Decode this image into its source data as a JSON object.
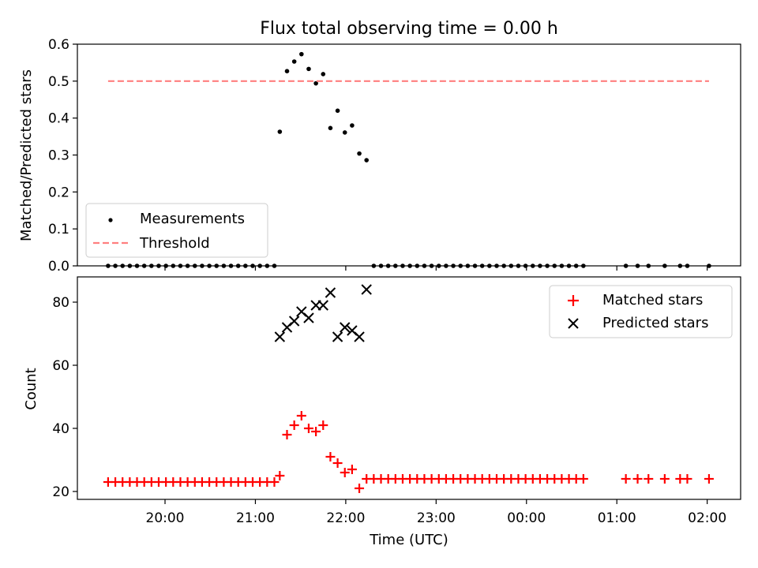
{
  "figure": {
    "title": "Flux total observing time = 0.00 h",
    "xlabel": "Time (UTC)",
    "xticks": [
      "20:00",
      "21:00",
      "22:00",
      "23:00",
      "00:00",
      "01:00",
      "02:00"
    ]
  },
  "chart_data": [
    {
      "type": "scatter",
      "panel": "top",
      "ylabel": "Matched/Predicted stars",
      "ylim": [
        0,
        0.6
      ],
      "yticks": [
        "0.0",
        "0.1",
        "0.2",
        "0.3",
        "0.4",
        "0.5",
        "0.6"
      ],
      "x_unit": "hours since 20:00 UTC",
      "xlim": [
        -0.97,
        6.37
      ],
      "legend": {
        "position": "lower-left",
        "entries": [
          "Measurements",
          "Threshold"
        ]
      },
      "series": [
        {
          "name": "Measurements",
          "marker": "dot",
          "color": "#000000",
          "points": [
            [
              -0.63,
              0
            ],
            [
              -0.55,
              0
            ],
            [
              -0.47,
              0
            ],
            [
              -0.39,
              0
            ],
            [
              -0.31,
              0
            ],
            [
              -0.23,
              0
            ],
            [
              -0.15,
              0
            ],
            [
              -0.07,
              0
            ],
            [
              0.01,
              0
            ],
            [
              0.09,
              0
            ],
            [
              0.17,
              0
            ],
            [
              0.25,
              0
            ],
            [
              0.33,
              0
            ],
            [
              0.41,
              0
            ],
            [
              0.49,
              0
            ],
            [
              0.57,
              0
            ],
            [
              0.65,
              0
            ],
            [
              0.73,
              0
            ],
            [
              0.81,
              0
            ],
            [
              0.89,
              0
            ],
            [
              0.97,
              0
            ],
            [
              1.05,
              0
            ],
            [
              1.13,
              0
            ],
            [
              1.21,
              0
            ],
            [
              1.27,
              0.363
            ],
            [
              1.35,
              0.527
            ],
            [
              1.43,
              0.553
            ],
            [
              1.51,
              0.573
            ],
            [
              1.59,
              0.533
            ],
            [
              1.67,
              0.494
            ],
            [
              1.75,
              0.519
            ],
            [
              1.83,
              0.373
            ],
            [
              1.91,
              0.42
            ],
            [
              1.99,
              0.361
            ],
            [
              2.07,
              0.38
            ],
            [
              2.15,
              0.304
            ],
            [
              2.23,
              0.286
            ],
            [
              2.31,
              0
            ],
            [
              2.39,
              0
            ],
            [
              2.47,
              0
            ],
            [
              2.55,
              0
            ],
            [
              2.63,
              0
            ],
            [
              2.71,
              0
            ],
            [
              2.79,
              0
            ],
            [
              2.87,
              0
            ],
            [
              2.95,
              0
            ],
            [
              3.03,
              0
            ],
            [
              3.11,
              0
            ],
            [
              3.19,
              0
            ],
            [
              3.27,
              0
            ],
            [
              3.35,
              0
            ],
            [
              3.43,
              0
            ],
            [
              3.51,
              0
            ],
            [
              3.59,
              0
            ],
            [
              3.67,
              0
            ],
            [
              3.75,
              0
            ],
            [
              3.83,
              0
            ],
            [
              3.91,
              0
            ],
            [
              3.99,
              0
            ],
            [
              4.07,
              0
            ],
            [
              4.15,
              0
            ],
            [
              4.23,
              0
            ],
            [
              4.31,
              0
            ],
            [
              4.39,
              0
            ],
            [
              4.47,
              0
            ],
            [
              4.55,
              0
            ],
            [
              4.63,
              0
            ],
            [
              5.1,
              0
            ],
            [
              5.23,
              0
            ],
            [
              5.35,
              0
            ],
            [
              5.53,
              0
            ],
            [
              5.7,
              0
            ],
            [
              5.78,
              0
            ],
            [
              6.02,
              0
            ]
          ]
        },
        {
          "name": "Threshold",
          "marker": "dashed-line",
          "color": "#ff7f7f",
          "points": [
            [
              -0.63,
              0.5
            ],
            [
              6.02,
              0.5
            ]
          ]
        }
      ]
    },
    {
      "type": "scatter",
      "panel": "bottom",
      "ylabel": "Count",
      "ylim": [
        17.5,
        88
      ],
      "yticks": [
        "20",
        "40",
        "60",
        "80"
      ],
      "x_unit": "hours since 20:00 UTC",
      "xlim": [
        -0.97,
        6.37
      ],
      "legend": {
        "position": "top-right",
        "entries": [
          "Matched stars",
          "Predicted stars"
        ]
      },
      "series": [
        {
          "name": "Matched stars",
          "marker": "plus",
          "color": "#ff0000",
          "points": [
            [
              -0.63,
              23
            ],
            [
              -0.55,
              23
            ],
            [
              -0.47,
              23
            ],
            [
              -0.39,
              23
            ],
            [
              -0.31,
              23
            ],
            [
              -0.23,
              23
            ],
            [
              -0.15,
              23
            ],
            [
              -0.07,
              23
            ],
            [
              0.01,
              23
            ],
            [
              0.09,
              23
            ],
            [
              0.17,
              23
            ],
            [
              0.25,
              23
            ],
            [
              0.33,
              23
            ],
            [
              0.41,
              23
            ],
            [
              0.49,
              23
            ],
            [
              0.57,
              23
            ],
            [
              0.65,
              23
            ],
            [
              0.73,
              23
            ],
            [
              0.81,
              23
            ],
            [
              0.89,
              23
            ],
            [
              0.97,
              23
            ],
            [
              1.05,
              23
            ],
            [
              1.13,
              23
            ],
            [
              1.21,
              23
            ],
            [
              1.27,
              25
            ],
            [
              1.35,
              38
            ],
            [
              1.43,
              41
            ],
            [
              1.51,
              44
            ],
            [
              1.59,
              40
            ],
            [
              1.67,
              39
            ],
            [
              1.75,
              41
            ],
            [
              1.83,
              31
            ],
            [
              1.91,
              29
            ],
            [
              1.99,
              26
            ],
            [
              2.07,
              27
            ],
            [
              2.15,
              21
            ],
            [
              2.23,
              24
            ],
            [
              2.31,
              24
            ],
            [
              2.39,
              24
            ],
            [
              2.47,
              24
            ],
            [
              2.55,
              24
            ],
            [
              2.63,
              24
            ],
            [
              2.71,
              24
            ],
            [
              2.79,
              24
            ],
            [
              2.87,
              24
            ],
            [
              2.95,
              24
            ],
            [
              3.03,
              24
            ],
            [
              3.11,
              24
            ],
            [
              3.19,
              24
            ],
            [
              3.27,
              24
            ],
            [
              3.35,
              24
            ],
            [
              3.43,
              24
            ],
            [
              3.51,
              24
            ],
            [
              3.59,
              24
            ],
            [
              3.67,
              24
            ],
            [
              3.75,
              24
            ],
            [
              3.83,
              24
            ],
            [
              3.91,
              24
            ],
            [
              3.99,
              24
            ],
            [
              4.07,
              24
            ],
            [
              4.15,
              24
            ],
            [
              4.23,
              24
            ],
            [
              4.31,
              24
            ],
            [
              4.39,
              24
            ],
            [
              4.47,
              24
            ],
            [
              4.55,
              24
            ],
            [
              4.63,
              24
            ],
            [
              5.1,
              24
            ],
            [
              5.23,
              24
            ],
            [
              5.35,
              24
            ],
            [
              5.53,
              24
            ],
            [
              5.7,
              24
            ],
            [
              5.78,
              24
            ],
            [
              6.02,
              24
            ]
          ]
        },
        {
          "name": "Predicted stars",
          "marker": "x",
          "color": "#000000",
          "points": [
            [
              1.27,
              69
            ],
            [
              1.35,
              72
            ],
            [
              1.43,
              74
            ],
            [
              1.51,
              77
            ],
            [
              1.59,
              75
            ],
            [
              1.67,
              79
            ],
            [
              1.75,
              79
            ],
            [
              1.83,
              83
            ],
            [
              1.91,
              69
            ],
            [
              1.99,
              72
            ],
            [
              2.07,
              71
            ],
            [
              2.15,
              69
            ],
            [
              2.23,
              84
            ]
          ]
        }
      ]
    }
  ]
}
